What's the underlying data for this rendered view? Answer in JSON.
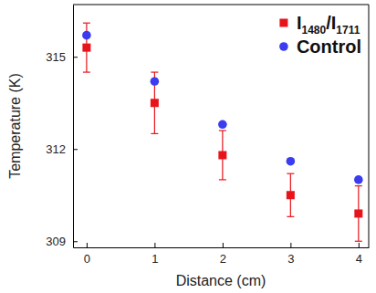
{
  "chart_data": {
    "type": "scatter",
    "x_label": "Distance (cm)",
    "y_label": "Temperature (K)",
    "x": [
      0,
      1,
      2,
      3,
      4
    ],
    "series": [
      {
        "name": "I1480/I1711",
        "color": "#e8141b",
        "marker": "square",
        "values": [
          315.3,
          313.5,
          311.8,
          310.5,
          309.9
        ],
        "errors": [
          0.8,
          1.0,
          0.8,
          0.7,
          0.9
        ]
      },
      {
        "name": "Control",
        "color": "#3b3bf0",
        "marker": "circle",
        "values": [
          315.7,
          314.2,
          312.8,
          311.6,
          311.0
        ]
      }
    ],
    "xlim": [
      -0.2,
      4.15
    ],
    "ylim": [
      308.8,
      316.7
    ],
    "xticks": [
      0,
      1,
      2,
      3,
      4
    ],
    "yticks": [
      309,
      312,
      315
    ],
    "legend": "upper right"
  }
}
